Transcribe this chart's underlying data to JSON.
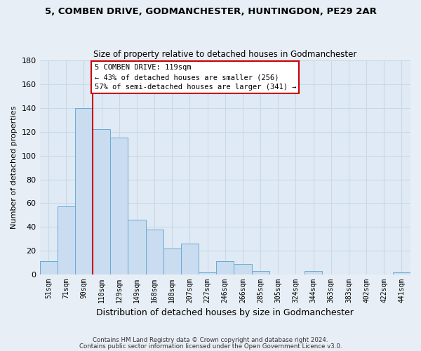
{
  "title": "5, COMBEN DRIVE, GODMANCHESTER, HUNTINGDON, PE29 2AR",
  "subtitle": "Size of property relative to detached houses in Godmanchester",
  "xlabel": "Distribution of detached houses by size in Godmanchester",
  "ylabel": "Number of detached properties",
  "bar_labels": [
    "51sqm",
    "71sqm",
    "90sqm",
    "110sqm",
    "129sqm",
    "149sqm",
    "168sqm",
    "188sqm",
    "207sqm",
    "227sqm",
    "246sqm",
    "266sqm",
    "285sqm",
    "305sqm",
    "324sqm",
    "344sqm",
    "363sqm",
    "383sqm",
    "402sqm",
    "422sqm",
    "441sqm"
  ],
  "bar_heights": [
    11,
    57,
    140,
    122,
    115,
    46,
    38,
    22,
    26,
    2,
    11,
    9,
    3,
    0,
    0,
    3,
    0,
    0,
    0,
    0,
    2
  ],
  "bar_color": "#c9dcf0",
  "bar_edge_color": "#6aaad4",
  "ylim": [
    0,
    180
  ],
  "yticks": [
    0,
    20,
    40,
    60,
    80,
    100,
    120,
    140,
    160,
    180
  ],
  "vline_x": 3.0,
  "vline_color": "#cc0000",
  "annotation_title": "5 COMBEN DRIVE: 119sqm",
  "annotation_line1": "← 43% of detached houses are smaller (256)",
  "annotation_line2": "57% of semi-detached houses are larger (341) →",
  "annotation_box_color": "#ffffff",
  "annotation_box_edge": "#cc0000",
  "footer_line1": "Contains HM Land Registry data © Crown copyright and database right 2024.",
  "footer_line2": "Contains public sector information licensed under the Open Government Licence v3.0.",
  "background_color": "#e8eef5",
  "plot_background": "#e0eaf5",
  "grid_color": "#c8d8e8"
}
